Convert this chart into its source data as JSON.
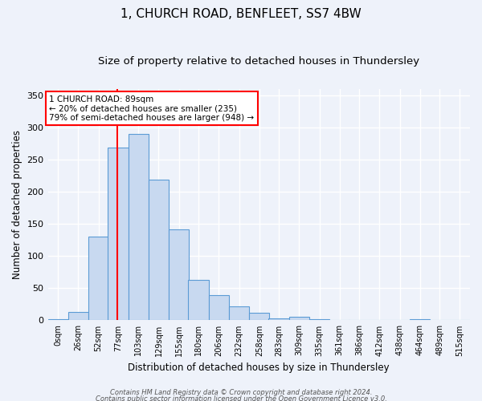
{
  "title1": "1, CHURCH ROAD, BENFLEET, SS7 4BW",
  "title2": "Size of property relative to detached houses in Thundersley",
  "xlabel": "Distribution of detached houses by size in Thundersley",
  "ylabel": "Number of detached properties",
  "bin_labels": [
    "0sqm",
    "26sqm",
    "52sqm",
    "77sqm",
    "103sqm",
    "129sqm",
    "155sqm",
    "180sqm",
    "206sqm",
    "232sqm",
    "258sqm",
    "283sqm",
    "309sqm",
    "335sqm",
    "361sqm",
    "386sqm",
    "412sqm",
    "438sqm",
    "464sqm",
    "489sqm",
    "515sqm"
  ],
  "bin_edges": [
    0,
    26,
    52,
    77,
    103,
    129,
    155,
    180,
    206,
    232,
    258,
    283,
    309,
    335,
    361,
    386,
    412,
    438,
    464,
    489,
    515
  ],
  "bar_heights": [
    2,
    13,
    130,
    268,
    290,
    219,
    141,
    63,
    39,
    22,
    12,
    3,
    6,
    2,
    0,
    0,
    0,
    0,
    2,
    0,
    0
  ],
  "bar_color": "#c8d9f0",
  "bar_edge_color": "#5b9bd5",
  "red_line_x": 89,
  "annotation_text": "1 CHURCH ROAD: 89sqm\n← 20% of detached houses are smaller (235)\n79% of semi-detached houses are larger (948) →",
  "annotation_box_color": "white",
  "annotation_box_edge": "red",
  "ylim": [
    0,
    360
  ],
  "yticks": [
    0,
    50,
    100,
    150,
    200,
    250,
    300,
    350
  ],
  "footer_line1": "Contains HM Land Registry data © Crown copyright and database right 2024.",
  "footer_line2": "Contains public sector information licensed under the Open Government Licence v3.0.",
  "background_color": "#eef2fa",
  "grid_color": "#ffffff",
  "title1_fontsize": 11,
  "title2_fontsize": 9.5
}
